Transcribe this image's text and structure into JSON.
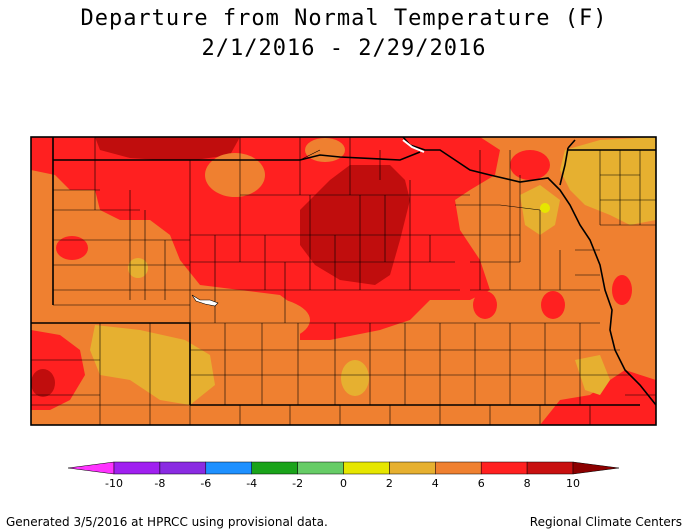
{
  "title": "Departure from Normal Temperature (F)",
  "date_range": "2/1/2016 - 2/29/2016",
  "legend": {
    "ticks": [
      "-10",
      "-8",
      "-6",
      "-4",
      "-2",
      "0",
      "2",
      "4",
      "6",
      "8",
      "10"
    ],
    "colors": {
      "below_-10": "#ff33ff",
      "-10_-9": "#a020f0",
      "-8_-7": "#8a2be2",
      "-6_-5": "#1e90ff",
      "-4_-3": "#1aa31a",
      "-2_-1": "#66cc66",
      "0_1": "#e6e600",
      "2_3": "#e6b030",
      "4_5": "#ef8030",
      "6_7": "#ff2020",
      "8_9": "#c81010",
      "above_10": "#8b0000"
    }
  },
  "map_colors": {
    "deep_red": "#c00d0d",
    "red": "#ff2020",
    "orange": "#ef8030",
    "light_orange": "#e6b030",
    "yellow": "#e6e600",
    "border": "#000000",
    "water": "#ffffff"
  },
  "footer": {
    "left": "Generated 3/5/2016 at HPRCC using provisional data.",
    "right": "Regional Climate Centers"
  }
}
